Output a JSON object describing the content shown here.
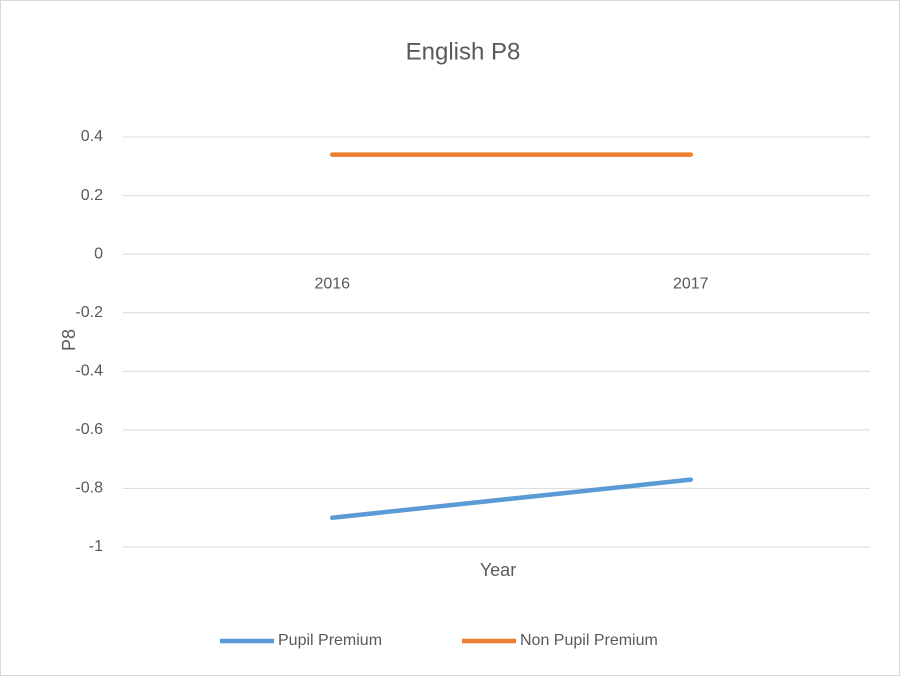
{
  "chart_data": {
    "type": "line",
    "title": "English P8",
    "x_label": "Year",
    "y_label": "P8",
    "categories": [
      "2016",
      "2017"
    ],
    "series": [
      {
        "name": "Pupil Premium",
        "color": "#5b9bd5",
        "values": [
          -0.9,
          -0.77
        ]
      },
      {
        "name": "Non Pupil Premium",
        "color": "#ed7d31",
        "values": [
          0.34,
          0.34
        ]
      }
    ],
    "ylim": [
      -1,
      0.4
    ],
    "yticks": [
      -1,
      -0.8,
      -0.6,
      -0.4,
      -0.2,
      0,
      0.2,
      0.4
    ],
    "grid": true,
    "legend": "bottom"
  }
}
